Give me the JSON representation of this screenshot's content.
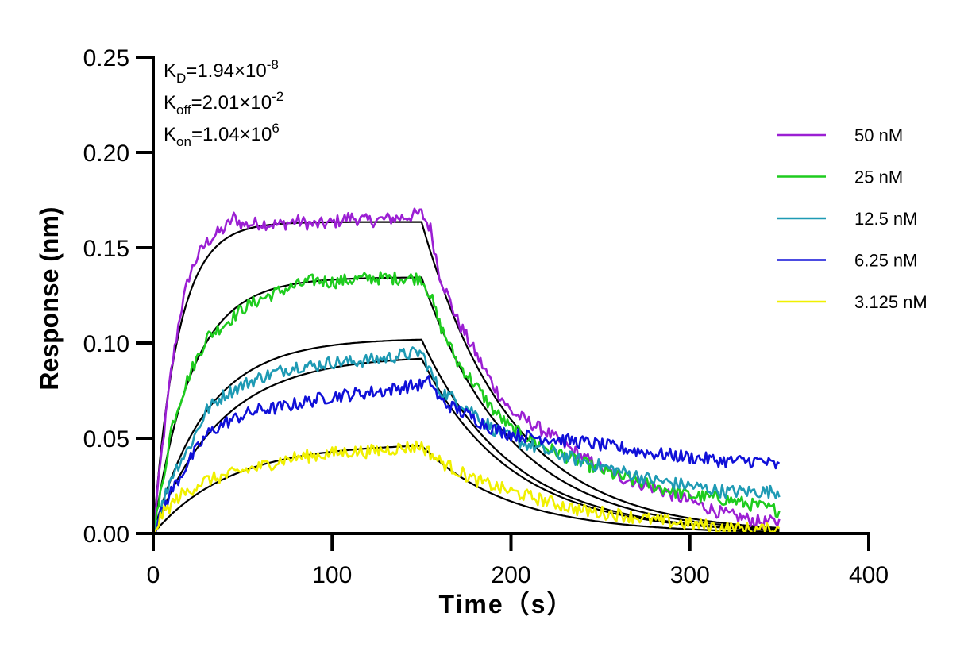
{
  "chart_data": {
    "type": "line",
    "xlabel": "Time（s）",
    "ylabel": "Response (nm)",
    "xlim": [
      0,
      400
    ],
    "ylim": [
      0,
      0.25
    ],
    "x_ticks": [
      "0",
      "100",
      "200",
      "300",
      "400"
    ],
    "y_ticks": [
      "0.00",
      "0.05",
      "0.10",
      "0.15",
      "0.20",
      "0.25"
    ],
    "grid": false,
    "legend_position": "right",
    "annotations": [
      {
        "name": "K",
        "sub": "D",
        "value": "=1.94×10",
        "exp": "-8"
      },
      {
        "name": "K",
        "sub": "off",
        "value": "=2.01×10",
        "exp": "-2"
      },
      {
        "name": "K",
        "sub": "on",
        "value": "=1.04×10",
        "exp": "6"
      }
    ],
    "kinetics": {
      "kd": 0.0201,
      "association_end": 150,
      "end": 350
    },
    "series": [
      {
        "name": "50 nM",
        "color": "#9B1FD3",
        "rmax": 0.1635,
        "kobs": 0.0721,
        "noise": 0.0035,
        "drift": 0.004,
        "points": [
          [
            0,
            0
          ],
          [
            5,
            0.045
          ],
          [
            10,
            0.085
          ],
          [
            15,
            0.115
          ],
          [
            20,
            0.135
          ],
          [
            25,
            0.146
          ],
          [
            30,
            0.153
          ],
          [
            35,
            0.157
          ],
          [
            40,
            0.16
          ],
          [
            45,
            0.166
          ],
          [
            50,
            0.162
          ],
          [
            60,
            0.163
          ],
          [
            70,
            0.162
          ],
          [
            80,
            0.164
          ],
          [
            90,
            0.162
          ],
          [
            100,
            0.163
          ],
          [
            110,
            0.166
          ],
          [
            120,
            0.164
          ],
          [
            130,
            0.165
          ],
          [
            140,
            0.166
          ],
          [
            150,
            0.168
          ],
          [
            155,
            0.16
          ],
          [
            160,
            0.136
          ],
          [
            170,
            0.112
          ],
          [
            180,
            0.095
          ],
          [
            190,
            0.078
          ],
          [
            200,
            0.064
          ],
          [
            220,
            0.053
          ],
          [
            240,
            0.04
          ],
          [
            260,
            0.03
          ],
          [
            280,
            0.024
          ],
          [
            300,
            0.017
          ],
          [
            320,
            0.01
          ],
          [
            340,
            0.006
          ],
          [
            350,
            0.006
          ]
        ]
      },
      {
        "name": "25 nM",
        "color": "#1ECC1E",
        "rmax": 0.1345,
        "kobs": 0.0461,
        "noise": 0.0035,
        "drift": 0.006,
        "points": [
          [
            0,
            0
          ],
          [
            5,
            0.025
          ],
          [
            10,
            0.055
          ],
          [
            15,
            0.07
          ],
          [
            20,
            0.083
          ],
          [
            25,
            0.093
          ],
          [
            30,
            0.103
          ],
          [
            40,
            0.11
          ],
          [
            50,
            0.118
          ],
          [
            60,
            0.123
          ],
          [
            70,
            0.127
          ],
          [
            80,
            0.13
          ],
          [
            90,
            0.133
          ],
          [
            100,
            0.132
          ],
          [
            110,
            0.133
          ],
          [
            120,
            0.134
          ],
          [
            130,
            0.134
          ],
          [
            140,
            0.134
          ],
          [
            150,
            0.134
          ],
          [
            155,
            0.125
          ],
          [
            160,
            0.11
          ],
          [
            170,
            0.09
          ],
          [
            180,
            0.078
          ],
          [
            190,
            0.065
          ],
          [
            200,
            0.055
          ],
          [
            220,
            0.045
          ],
          [
            240,
            0.037
          ],
          [
            260,
            0.03
          ],
          [
            280,
            0.025
          ],
          [
            300,
            0.02
          ],
          [
            320,
            0.018
          ],
          [
            340,
            0.014
          ],
          [
            350,
            0.012
          ]
        ]
      },
      {
        "name": "12.5 nM",
        "color": "#1E9AB4",
        "rmax": 0.1025,
        "kobs": 0.0331,
        "noise": 0.0035,
        "drift": 0.014,
        "points": [
          [
            0,
            0
          ],
          [
            5,
            0.015
          ],
          [
            10,
            0.03
          ],
          [
            15,
            0.038
          ],
          [
            20,
            0.045
          ],
          [
            25,
            0.055
          ],
          [
            30,
            0.065
          ],
          [
            40,
            0.073
          ],
          [
            50,
            0.078
          ],
          [
            60,
            0.082
          ],
          [
            70,
            0.085
          ],
          [
            80,
            0.088
          ],
          [
            90,
            0.088
          ],
          [
            100,
            0.09
          ],
          [
            110,
            0.09
          ],
          [
            120,
            0.091
          ],
          [
            130,
            0.092
          ],
          [
            140,
            0.094
          ],
          [
            150,
            0.095
          ],
          [
            155,
            0.085
          ],
          [
            160,
            0.075
          ],
          [
            170,
            0.07
          ],
          [
            180,
            0.063
          ],
          [
            190,
            0.055
          ],
          [
            200,
            0.05
          ],
          [
            220,
            0.043
          ],
          [
            240,
            0.038
          ],
          [
            260,
            0.033
          ],
          [
            280,
            0.028
          ],
          [
            300,
            0.025
          ],
          [
            320,
            0.022
          ],
          [
            340,
            0.022
          ],
          [
            350,
            0.022
          ]
        ]
      },
      {
        "name": "6.25 nM",
        "color": "#1010D8",
        "rmax": 0.0935,
        "kobs": 0.0266,
        "noise": 0.0035,
        "drift": 0.032,
        "points": [
          [
            0,
            0
          ],
          [
            5,
            0.012
          ],
          [
            10,
            0.022
          ],
          [
            15,
            0.03
          ],
          [
            20,
            0.038
          ],
          [
            25,
            0.045
          ],
          [
            30,
            0.052
          ],
          [
            40,
            0.058
          ],
          [
            50,
            0.062
          ],
          [
            60,
            0.065
          ],
          [
            70,
            0.066
          ],
          [
            80,
            0.068
          ],
          [
            90,
            0.07
          ],
          [
            100,
            0.072
          ],
          [
            110,
            0.073
          ],
          [
            120,
            0.074
          ],
          [
            130,
            0.075
          ],
          [
            140,
            0.077
          ],
          [
            150,
            0.078
          ],
          [
            155,
            0.08
          ],
          [
            160,
            0.07
          ],
          [
            170,
            0.065
          ],
          [
            180,
            0.06
          ],
          [
            190,
            0.055
          ],
          [
            200,
            0.052
          ],
          [
            220,
            0.05
          ],
          [
            240,
            0.048
          ],
          [
            260,
            0.045
          ],
          [
            280,
            0.042
          ],
          [
            300,
            0.04
          ],
          [
            320,
            0.038
          ],
          [
            340,
            0.038
          ],
          [
            350,
            0.035
          ]
        ]
      },
      {
        "name": "3.125 nM",
        "color": "#F0F000",
        "rmax": 0.0475,
        "kobs": 0.0234,
        "noise": 0.0035,
        "drift": 0.001,
        "points": [
          [
            0,
            0
          ],
          [
            5,
            0.01
          ],
          [
            10,
            0.015
          ],
          [
            15,
            0.02
          ],
          [
            20,
            0.022
          ],
          [
            25,
            0.026
          ],
          [
            30,
            0.028
          ],
          [
            40,
            0.03
          ],
          [
            50,
            0.033
          ],
          [
            60,
            0.035
          ],
          [
            70,
            0.038
          ],
          [
            80,
            0.04
          ],
          [
            90,
            0.041
          ],
          [
            100,
            0.042
          ],
          [
            110,
            0.043
          ],
          [
            120,
            0.043
          ],
          [
            130,
            0.044
          ],
          [
            140,
            0.045
          ],
          [
            150,
            0.046
          ],
          [
            155,
            0.042
          ],
          [
            160,
            0.038
          ],
          [
            170,
            0.033
          ],
          [
            180,
            0.028
          ],
          [
            190,
            0.025
          ],
          [
            200,
            0.022
          ],
          [
            220,
            0.017
          ],
          [
            240,
            0.012
          ],
          [
            260,
            0.01
          ],
          [
            280,
            0.007
          ],
          [
            300,
            0.005
          ],
          [
            320,
            0.003
          ],
          [
            340,
            0.002
          ],
          [
            350,
            0.002
          ]
        ]
      }
    ],
    "fit_color": "#000000"
  }
}
